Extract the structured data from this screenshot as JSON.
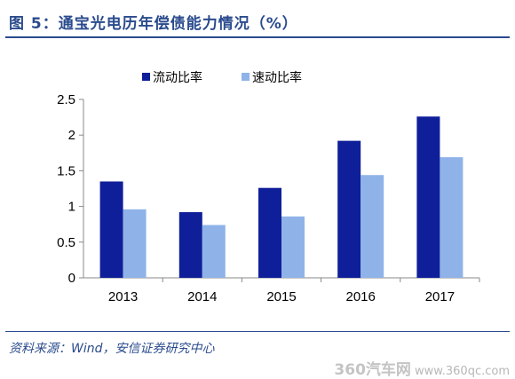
{
  "header": {
    "title": "图 5：通宝光电历年偿债能力情况（%）"
  },
  "footer": {
    "source": "资料来源：Wind，安信证券研究中心",
    "watermark_brand": "360汽车网",
    "watermark_url": "www.360qc.com"
  },
  "colors": {
    "series_current": "#0f1f99",
    "series_quick": "#8fb3e8",
    "accent": "#2a4b8d"
  },
  "chart_data": {
    "type": "bar",
    "categories": [
      "2013",
      "2014",
      "2015",
      "2016",
      "2017"
    ],
    "series": [
      {
        "name": "流动比率",
        "values": [
          1.35,
          0.92,
          1.26,
          1.92,
          2.26
        ],
        "color": "#0f1f99"
      },
      {
        "name": "速动比率",
        "values": [
          0.96,
          0.74,
          0.86,
          1.44,
          1.69
        ],
        "color": "#8fb3e8"
      }
    ],
    "yticks": [
      "0",
      "0.5",
      "1",
      "1.5",
      "2",
      "2.5"
    ],
    "ylim": [
      0,
      2.5
    ],
    "legend_position": "top",
    "grid": false
  }
}
